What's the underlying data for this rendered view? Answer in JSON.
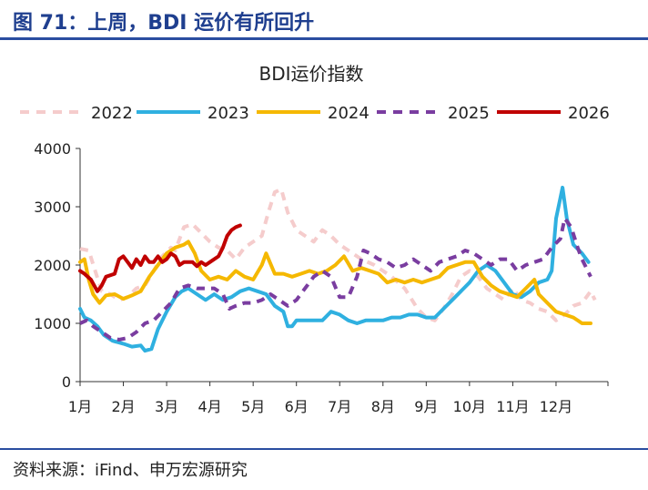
{
  "header": {
    "figure_title": "图 71：上周，BDI 运价有所回升"
  },
  "colors": {
    "accent": "#2a4da0",
    "title": "#1f3f8f"
  },
  "chart_data": {
    "type": "line",
    "title": "BDI运价指数",
    "xlabel": "",
    "ylabel": "",
    "x_unit": "month (1 = start of 1月)",
    "xlim": [
      1,
      13.2
    ],
    "ylim": [
      0,
      4000
    ],
    "yticks": [
      0,
      1000,
      2000,
      3000,
      4000
    ],
    "ytick_labels": [
      "0",
      "1000",
      "2000",
      "3000",
      "4000"
    ],
    "xticks": [
      1,
      2,
      3,
      4,
      5,
      6,
      7,
      8,
      9,
      10,
      11,
      12
    ],
    "xtick_labels": [
      "1月",
      "2月",
      "3月",
      "4月",
      "5月",
      "6月",
      "7月",
      "8月",
      "9月",
      "10月",
      "11月",
      "12月"
    ],
    "grid": false,
    "legend_position": "top",
    "series": [
      {
        "name": "2022",
        "color": "#f5cccc",
        "style": "dashed",
        "points": [
          [
            1.0,
            2280
          ],
          [
            1.2,
            2250
          ],
          [
            1.35,
            1900
          ],
          [
            1.5,
            1550
          ],
          [
            1.7,
            1500
          ],
          [
            1.9,
            1400
          ],
          [
            2.1,
            1450
          ],
          [
            2.3,
            1600
          ],
          [
            2.5,
            1650
          ],
          [
            2.7,
            1900
          ],
          [
            2.9,
            2150
          ],
          [
            3.1,
            2300
          ],
          [
            3.2,
            2250
          ],
          [
            3.4,
            2650
          ],
          [
            3.6,
            2700
          ],
          [
            3.8,
            2550
          ],
          [
            4.0,
            2400
          ],
          [
            4.2,
            2300
          ],
          [
            4.4,
            2250
          ],
          [
            4.6,
            2100
          ],
          [
            4.8,
            2300
          ],
          [
            5.0,
            2400
          ],
          [
            5.2,
            2500
          ],
          [
            5.35,
            2900
          ],
          [
            5.5,
            3250
          ],
          [
            5.65,
            3300
          ],
          [
            5.8,
            2900
          ],
          [
            6.0,
            2600
          ],
          [
            6.2,
            2500
          ],
          [
            6.4,
            2400
          ],
          [
            6.6,
            2600
          ],
          [
            6.8,
            2500
          ],
          [
            7.0,
            2350
          ],
          [
            7.2,
            2250
          ],
          [
            7.5,
            2100
          ],
          [
            7.8,
            2000
          ],
          [
            8.0,
            1900
          ],
          [
            8.2,
            1800
          ],
          [
            8.5,
            1600
          ],
          [
            8.8,
            1250
          ],
          [
            9.0,
            1100
          ],
          [
            9.2,
            1050
          ],
          [
            9.4,
            1250
          ],
          [
            9.6,
            1500
          ],
          [
            9.8,
            1800
          ],
          [
            10.0,
            1900
          ],
          [
            10.2,
            1800
          ],
          [
            10.4,
            1600
          ],
          [
            10.6,
            1500
          ],
          [
            10.8,
            1400
          ],
          [
            11.0,
            1600
          ],
          [
            11.2,
            1400
          ],
          [
            11.4,
            1350
          ],
          [
            11.6,
            1250
          ],
          [
            11.8,
            1200
          ],
          [
            12.0,
            1050
          ],
          [
            12.2,
            1150
          ],
          [
            12.4,
            1300
          ],
          [
            12.6,
            1350
          ],
          [
            12.8,
            1550
          ],
          [
            12.9,
            1400
          ]
        ]
      },
      {
        "name": "2023",
        "color": "#2fb0e0",
        "style": "solid",
        "points": [
          [
            1.0,
            1250
          ],
          [
            1.1,
            1100
          ],
          [
            1.25,
            1050
          ],
          [
            1.4,
            950
          ],
          [
            1.55,
            800
          ],
          [
            1.75,
            700
          ],
          [
            2.0,
            650
          ],
          [
            2.2,
            600
          ],
          [
            2.4,
            620
          ],
          [
            2.5,
            530
          ],
          [
            2.65,
            560
          ],
          [
            2.8,
            900
          ],
          [
            3.0,
            1200
          ],
          [
            3.2,
            1450
          ],
          [
            3.35,
            1550
          ],
          [
            3.5,
            1600
          ],
          [
            3.7,
            1500
          ],
          [
            3.9,
            1400
          ],
          [
            4.1,
            1500
          ],
          [
            4.3,
            1400
          ],
          [
            4.5,
            1450
          ],
          [
            4.7,
            1550
          ],
          [
            4.9,
            1600
          ],
          [
            5.1,
            1550
          ],
          [
            5.3,
            1500
          ],
          [
            5.5,
            1300
          ],
          [
            5.7,
            1200
          ],
          [
            5.8,
            950
          ],
          [
            5.9,
            950
          ],
          [
            6.0,
            1050
          ],
          [
            6.2,
            1050
          ],
          [
            6.4,
            1050
          ],
          [
            6.6,
            1050
          ],
          [
            6.8,
            1200
          ],
          [
            7.0,
            1150
          ],
          [
            7.2,
            1050
          ],
          [
            7.4,
            1000
          ],
          [
            7.6,
            1050
          ],
          [
            7.8,
            1050
          ],
          [
            8.0,
            1050
          ],
          [
            8.2,
            1100
          ],
          [
            8.4,
            1100
          ],
          [
            8.6,
            1150
          ],
          [
            8.8,
            1150
          ],
          [
            9.0,
            1100
          ],
          [
            9.2,
            1100
          ],
          [
            9.4,
            1250
          ],
          [
            9.6,
            1400
          ],
          [
            9.8,
            1550
          ],
          [
            10.0,
            1700
          ],
          [
            10.2,
            1900
          ],
          [
            10.4,
            2000
          ],
          [
            10.6,
            1900
          ],
          [
            10.8,
            1700
          ],
          [
            11.0,
            1500
          ],
          [
            11.2,
            1450
          ],
          [
            11.4,
            1550
          ],
          [
            11.6,
            1700
          ],
          [
            11.8,
            1750
          ],
          [
            11.9,
            1900
          ],
          [
            12.0,
            2800
          ],
          [
            12.1,
            3150
          ],
          [
            12.15,
            3330
          ],
          [
            12.25,
            2800
          ],
          [
            12.4,
            2350
          ],
          [
            12.6,
            2200
          ],
          [
            12.75,
            2050
          ]
        ]
      },
      {
        "name": "2024",
        "color": "#f5b800",
        "style": "solid",
        "points": [
          [
            1.0,
            2050
          ],
          [
            1.1,
            2100
          ],
          [
            1.2,
            1750
          ],
          [
            1.3,
            1500
          ],
          [
            1.45,
            1350
          ],
          [
            1.6,
            1480
          ],
          [
            1.8,
            1500
          ],
          [
            2.0,
            1420
          ],
          [
            2.2,
            1480
          ],
          [
            2.4,
            1550
          ],
          [
            2.6,
            1800
          ],
          [
            2.8,
            2000
          ],
          [
            3.0,
            2200
          ],
          [
            3.2,
            2300
          ],
          [
            3.4,
            2350
          ],
          [
            3.5,
            2400
          ],
          [
            3.65,
            2200
          ],
          [
            3.8,
            1900
          ],
          [
            4.0,
            1750
          ],
          [
            4.2,
            1800
          ],
          [
            4.4,
            1750
          ],
          [
            4.6,
            1900
          ],
          [
            4.8,
            1800
          ],
          [
            5.0,
            1750
          ],
          [
            5.2,
            2000
          ],
          [
            5.3,
            2200
          ],
          [
            5.5,
            1850
          ],
          [
            5.7,
            1850
          ],
          [
            5.9,
            1800
          ],
          [
            6.1,
            1850
          ],
          [
            6.3,
            1900
          ],
          [
            6.5,
            1850
          ],
          [
            6.7,
            1900
          ],
          [
            6.9,
            2000
          ],
          [
            7.1,
            2150
          ],
          [
            7.3,
            1900
          ],
          [
            7.5,
            1950
          ],
          [
            7.7,
            1900
          ],
          [
            7.9,
            1850
          ],
          [
            8.1,
            1700
          ],
          [
            8.3,
            1750
          ],
          [
            8.5,
            1700
          ],
          [
            8.7,
            1750
          ],
          [
            8.9,
            1700
          ],
          [
            9.1,
            1750
          ],
          [
            9.3,
            1800
          ],
          [
            9.5,
            1950
          ],
          [
            9.7,
            2000
          ],
          [
            9.9,
            2050
          ],
          [
            10.1,
            2050
          ],
          [
            10.3,
            1800
          ],
          [
            10.5,
            1650
          ],
          [
            10.7,
            1550
          ],
          [
            10.9,
            1500
          ],
          [
            11.1,
            1450
          ],
          [
            11.3,
            1600
          ],
          [
            11.5,
            1750
          ],
          [
            11.6,
            1500
          ],
          [
            11.8,
            1350
          ],
          [
            12.0,
            1200
          ],
          [
            12.2,
            1150
          ],
          [
            12.4,
            1100
          ],
          [
            12.6,
            1000
          ],
          [
            12.8,
            1000
          ]
        ]
      },
      {
        "name": "2025",
        "color": "#7a3da0",
        "style": "dashed",
        "points": [
          [
            1.0,
            1000
          ],
          [
            1.15,
            1050
          ],
          [
            1.3,
            950
          ],
          [
            1.5,
            850
          ],
          [
            1.7,
            750
          ],
          [
            1.9,
            720
          ],
          [
            2.1,
            750
          ],
          [
            2.3,
            850
          ],
          [
            2.5,
            1000
          ],
          [
            2.7,
            1050
          ],
          [
            2.9,
            1200
          ],
          [
            3.1,
            1350
          ],
          [
            3.3,
            1600
          ],
          [
            3.5,
            1650
          ],
          [
            3.7,
            1600
          ],
          [
            3.9,
            1600
          ],
          [
            4.1,
            1600
          ],
          [
            4.3,
            1500
          ],
          [
            4.45,
            1250
          ],
          [
            4.6,
            1300
          ],
          [
            4.8,
            1350
          ],
          [
            5.0,
            1350
          ],
          [
            5.2,
            1400
          ],
          [
            5.4,
            1500
          ],
          [
            5.6,
            1400
          ],
          [
            5.8,
            1300
          ],
          [
            6.0,
            1400
          ],
          [
            6.2,
            1600
          ],
          [
            6.4,
            1800
          ],
          [
            6.6,
            1900
          ],
          [
            6.8,
            1800
          ],
          [
            7.0,
            1450
          ],
          [
            7.2,
            1450
          ],
          [
            7.4,
            1800
          ],
          [
            7.55,
            2250
          ],
          [
            7.7,
            2200
          ],
          [
            7.9,
            2100
          ],
          [
            8.1,
            2050
          ],
          [
            8.3,
            1950
          ],
          [
            8.5,
            2000
          ],
          [
            8.7,
            2100
          ],
          [
            8.9,
            2000
          ],
          [
            9.1,
            1900
          ],
          [
            9.3,
            2050
          ],
          [
            9.5,
            2100
          ],
          [
            9.7,
            2150
          ],
          [
            9.9,
            2250
          ],
          [
            10.1,
            2200
          ],
          [
            10.3,
            2100
          ],
          [
            10.5,
            2000
          ],
          [
            10.7,
            2100
          ],
          [
            10.9,
            2100
          ],
          [
            11.1,
            1900
          ],
          [
            11.3,
            2000
          ],
          [
            11.5,
            2050
          ],
          [
            11.7,
            2100
          ],
          [
            11.9,
            2300
          ],
          [
            12.1,
            2450
          ],
          [
            12.2,
            2800
          ],
          [
            12.35,
            2650
          ],
          [
            12.5,
            2300
          ],
          [
            12.6,
            2100
          ],
          [
            12.8,
            1800
          ]
        ]
      },
      {
        "name": "2026",
        "color": "#c00000",
        "style": "solid",
        "points": [
          [
            1.0,
            1900
          ],
          [
            1.1,
            1850
          ],
          [
            1.25,
            1750
          ],
          [
            1.4,
            1550
          ],
          [
            1.5,
            1650
          ],
          [
            1.6,
            1800
          ],
          [
            1.8,
            1850
          ],
          [
            1.9,
            2100
          ],
          [
            2.0,
            2150
          ],
          [
            2.1,
            2050
          ],
          [
            2.2,
            1950
          ],
          [
            2.3,
            2100
          ],
          [
            2.4,
            2000
          ],
          [
            2.5,
            2150
          ],
          [
            2.6,
            2050
          ],
          [
            2.7,
            2050
          ],
          [
            2.8,
            2150
          ],
          [
            2.9,
            2050
          ],
          [
            3.0,
            2100
          ],
          [
            3.1,
            2200
          ],
          [
            3.2,
            2150
          ],
          [
            3.3,
            2000
          ],
          [
            3.4,
            2050
          ],
          [
            3.5,
            2050
          ],
          [
            3.6,
            2050
          ],
          [
            3.7,
            1980
          ],
          [
            3.8,
            2050
          ],
          [
            3.9,
            2000
          ],
          [
            4.0,
            2050
          ],
          [
            4.1,
            2100
          ],
          [
            4.2,
            2150
          ],
          [
            4.3,
            2300
          ],
          [
            4.4,
            2500
          ],
          [
            4.5,
            2600
          ],
          [
            4.6,
            2650
          ],
          [
            4.7,
            2680
          ]
        ]
      }
    ]
  },
  "footer": {
    "source": "资料来源：iFind、申万宏源研究"
  }
}
